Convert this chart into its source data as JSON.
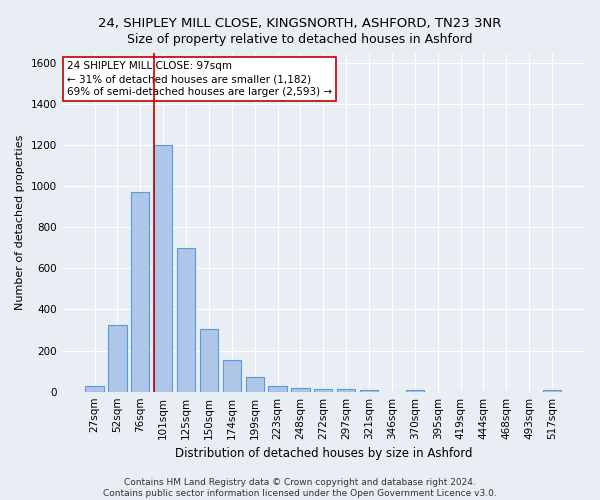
{
  "title": "24, SHIPLEY MILL CLOSE, KINGSNORTH, ASHFORD, TN23 3NR",
  "subtitle": "Size of property relative to detached houses in Ashford",
  "xlabel": "Distribution of detached houses by size in Ashford",
  "ylabel": "Number of detached properties",
  "categories": [
    "27sqm",
    "52sqm",
    "76sqm",
    "101sqm",
    "125sqm",
    "150sqm",
    "174sqm",
    "199sqm",
    "223sqm",
    "248sqm",
    "272sqm",
    "297sqm",
    "321sqm",
    "346sqm",
    "370sqm",
    "395sqm",
    "419sqm",
    "444sqm",
    "468sqm",
    "493sqm",
    "517sqm"
  ],
  "values": [
    30,
    325,
    970,
    1200,
    700,
    305,
    155,
    70,
    30,
    20,
    15,
    15,
    10,
    0,
    10,
    0,
    0,
    0,
    0,
    0,
    10
  ],
  "bar_color": "#aec6e8",
  "bar_edge_color": "#5b9bd5",
  "vline_index": 3,
  "annotation_line1": "24 SHIPLEY MILL CLOSE: 97sqm",
  "annotation_line2": "← 31% of detached houses are smaller (1,182)",
  "annotation_line3": "69% of semi-detached houses are larger (2,593) →",
  "annotation_box_color": "#ffffff",
  "annotation_box_edge_color": "#c00000",
  "vline_color": "#c00000",
  "ylim": [
    0,
    1650
  ],
  "yticks": [
    0,
    200,
    400,
    600,
    800,
    1000,
    1200,
    1400,
    1600
  ],
  "background_color": "#e8eef4",
  "grid_color": "#ffffff",
  "footer": "Contains HM Land Registry data © Crown copyright and database right 2024.\nContains public sector information licensed under the Open Government Licence v3.0.",
  "title_fontsize": 9.5,
  "subtitle_fontsize": 9,
  "xlabel_fontsize": 8.5,
  "ylabel_fontsize": 8,
  "tick_fontsize": 7.5,
  "annotation_fontsize": 7.5,
  "footer_fontsize": 6.5
}
